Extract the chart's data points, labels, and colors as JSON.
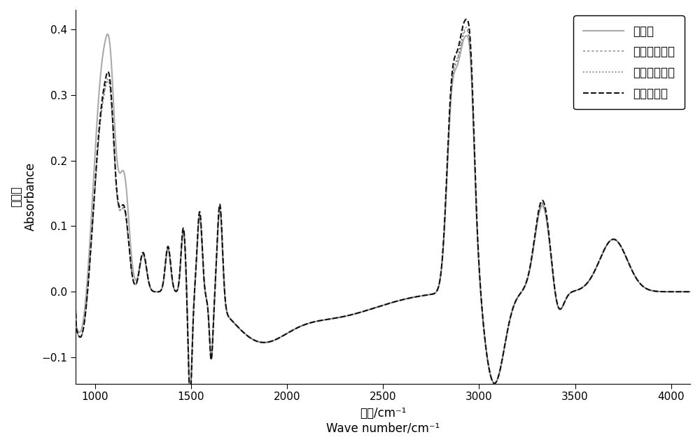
{
  "xlabel_cn": "波数/cm⁻¹",
  "xlabel_en": "Wave number/cm⁻¹",
  "ylabel_cn": "吸光度",
  "ylabel_en": "Absorbance",
  "xlim": [
    900,
    4100
  ],
  "ylim": [
    -0.14,
    0.43
  ],
  "yticks": [
    -0.1,
    0.0,
    0.1,
    0.2,
    0.3,
    0.4
  ],
  "xticks": [
    1000,
    1500,
    2000,
    2500,
    3000,
    3500,
    4000
  ],
  "legend_labels": [
    "特优优质奶",
    "高蛋白特色奶",
    "高乳脂特色奶",
    "普通奶"
  ],
  "background_color": "#ffffff"
}
